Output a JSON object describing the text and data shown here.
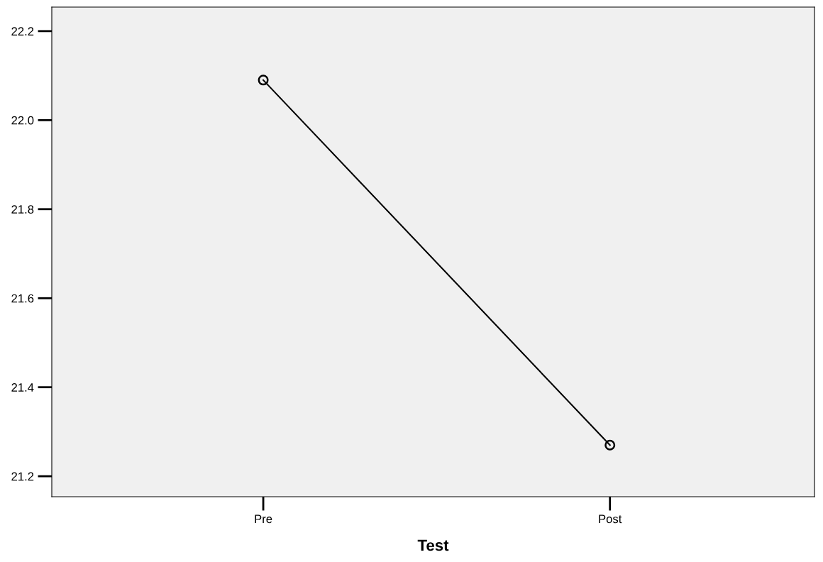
{
  "chart_data": {
    "type": "line",
    "xlabel": "Test",
    "categories": [
      "Pre",
      "Post"
    ],
    "series": [
      {
        "color": "#000000",
        "values": [
          22.09,
          21.27
        ]
      }
    ],
    "ylim": [
      21.154,
      22.254
    ],
    "yticks": [
      {
        "value": 21.2,
        "label": "21.2"
      },
      {
        "value": 21.4,
        "label": "21.4"
      },
      {
        "value": 21.6,
        "label": "21.6"
      },
      {
        "value": 21.8,
        "label": "21.8"
      },
      {
        "value": 22.0,
        "label": "22.0"
      },
      {
        "value": 22.2,
        "label": "22.2"
      }
    ],
    "marker": "circle",
    "line_style": "solid",
    "grid": false,
    "legend": false
  }
}
